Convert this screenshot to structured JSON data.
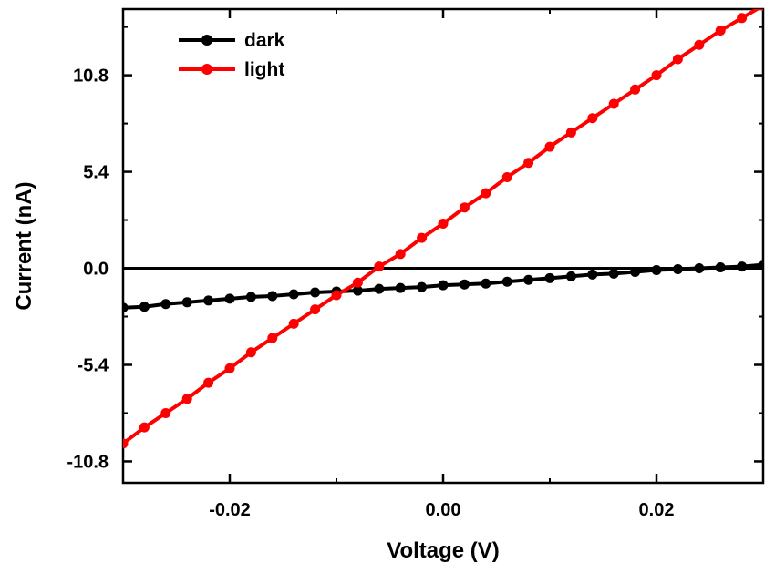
{
  "chart_data": {
    "type": "line",
    "xlabel": "Voltage (V)",
    "ylabel": "Current (nA)",
    "xlim": [
      -0.03,
      0.03
    ],
    "ylim": [
      -12.0,
      14.5
    ],
    "x_ticks": [
      -0.02,
      0.0,
      0.02
    ],
    "x_tick_labels": [
      "-0.02",
      "0.00",
      "0.02"
    ],
    "y_ticks": [
      -10.8,
      -5.4,
      0.0,
      5.4,
      10.8
    ],
    "y_tick_labels": [
      "-10.8",
      "-5.4",
      "0.0",
      "5.4",
      "10.8"
    ],
    "zero_line": true,
    "grid": false,
    "legend_position": "top-left",
    "colors": {
      "dark": "#000000",
      "light": "#ff0000"
    },
    "x": [
      -0.03,
      -0.028,
      -0.026,
      -0.024,
      -0.022,
      -0.02,
      -0.018,
      -0.016,
      -0.014,
      -0.012,
      -0.01,
      -0.008,
      -0.006,
      -0.004,
      -0.002,
      0.0,
      0.002,
      0.004,
      0.006,
      0.008,
      0.01,
      0.012,
      0.014,
      0.016,
      0.018,
      0.02,
      0.022,
      0.024,
      0.026,
      0.028,
      0.03
    ],
    "series": [
      {
        "name": "dark",
        "color": "#000000",
        "values": [
          -2.2,
          -2.15,
          -2.0,
          -1.9,
          -1.8,
          -1.7,
          -1.6,
          -1.55,
          -1.45,
          -1.35,
          -1.3,
          -1.25,
          -1.15,
          -1.1,
          -1.05,
          -0.95,
          -0.9,
          -0.85,
          -0.75,
          -0.65,
          -0.55,
          -0.45,
          -0.35,
          -0.3,
          -0.2,
          -0.1,
          -0.05,
          0.0,
          0.05,
          0.1,
          0.2
        ]
      },
      {
        "name": "light",
        "color": "#ff0000",
        "values": [
          -9.8,
          -8.9,
          -8.1,
          -7.3,
          -6.4,
          -5.6,
          -4.7,
          -3.9,
          -3.1,
          -2.3,
          -1.5,
          -0.8,
          0.1,
          0.8,
          1.7,
          2.5,
          3.4,
          4.2,
          5.1,
          5.9,
          6.8,
          7.6,
          8.4,
          9.2,
          10.0,
          10.8,
          11.7,
          12.5,
          13.3,
          14.0,
          14.7
        ]
      }
    ]
  }
}
